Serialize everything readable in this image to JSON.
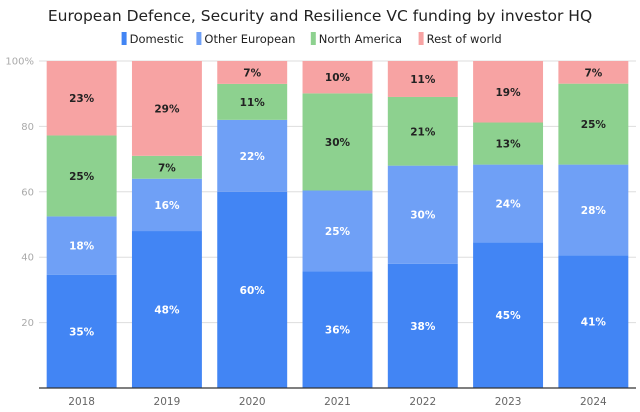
{
  "chart_data": {
    "type": "bar",
    "stacked": true,
    "title": "European Defence, Security and Resilience VC funding by investor HQ",
    "categories": [
      "2018",
      "2019",
      "2020",
      "2021",
      "2022",
      "2023",
      "2024"
    ],
    "series": [
      {
        "name": "Domestic",
        "color": "#4285f4",
        "label_color": "#ffffff",
        "values": [
          35,
          48,
          60,
          36,
          38,
          45,
          41
        ]
      },
      {
        "name": "Other European",
        "color": "#6fa0f6",
        "label_color": "#ffffff",
        "values": [
          18,
          16,
          22,
          25,
          30,
          24,
          28
        ]
      },
      {
        "name": "North America",
        "color": "#8dd18f",
        "label_color": "#222222",
        "values": [
          25,
          7,
          11,
          30,
          21,
          13,
          25
        ]
      },
      {
        "name": "Rest of world",
        "color": "#f7a3a3",
        "label_color": "#222222",
        "values": [
          23,
          29,
          7,
          10,
          11,
          19,
          7
        ]
      }
    ],
    "value_suffix": "%",
    "ylim": [
      0,
      100
    ],
    "yticks": [
      20,
      40,
      60,
      80,
      100
    ],
    "ytick_labels": [
      "20",
      "40",
      "60",
      "80",
      "100%"
    ],
    "grid": true,
    "legend_placement": "top-center"
  }
}
